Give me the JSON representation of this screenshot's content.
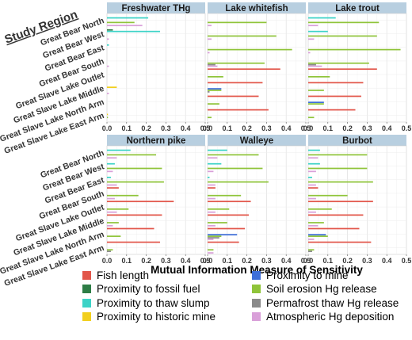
{
  "chart_data": {
    "type": "bar",
    "orientation": "horizontal",
    "y_title": "Study Region",
    "xlabel": "Mutual Information Measure of Sensitivity",
    "xlim": [
      0,
      0.5
    ],
    "xticks": [
      "0.0",
      "0.1",
      "0.2",
      "0.3",
      "0.4",
      "0.5"
    ],
    "grid": true,
    "legend_position": "bottom",
    "categories": [
      "Great Bear North",
      "Great Bear West",
      "Great Bear East",
      "Great Bear South",
      "Great Slave Lake Outlet",
      "Great Slave Lake Middle",
      "Great Slave Lake North Arm",
      "Great Slave Lake East Arm"
    ],
    "variables": [
      {
        "name": "Fish length",
        "color": "#e2564a"
      },
      {
        "name": "Proximity to fossil fuel",
        "color": "#2e7d46"
      },
      {
        "name": "Proximity to thaw slump",
        "color": "#3dd3c7"
      },
      {
        "name": "Proximity to historic mine",
        "color": "#f2cf1d"
      },
      {
        "name": "Proximity to mine",
        "color": "#3f6fd9"
      },
      {
        "name": "Soil erosion Hg release",
        "color": "#8fc43a"
      },
      {
        "name": "Permafrost thaw Hg release",
        "color": "#8a8a8a"
      },
      {
        "name": "Atmospheric Hg deposition",
        "color": "#d9a0d9"
      }
    ],
    "panels": [
      {
        "title": "Freshwater THg",
        "data": [
          [
            0,
            0,
            0.21,
            0,
            0,
            0.14,
            0,
            0.18
          ],
          [
            0,
            0.03,
            0.27,
            0,
            0,
            0,
            0,
            0.01
          ],
          [
            0,
            0,
            0.01,
            0,
            0,
            0,
            0,
            0
          ],
          [
            0,
            0,
            0,
            0,
            0,
            0,
            0,
            0.01
          ],
          [
            0,
            0,
            0,
            0,
            0,
            0,
            0,
            0
          ],
          [
            0,
            0,
            0,
            0.05,
            0,
            0,
            0,
            0.01
          ],
          [
            0,
            0,
            0,
            0,
            0,
            0,
            0,
            0
          ],
          [
            0,
            0,
            0,
            0.005,
            0,
            0.005,
            0,
            0
          ]
        ]
      },
      {
        "title": "Lake whitefish",
        "data": [
          [
            0,
            0,
            0,
            0,
            0,
            0.3,
            0,
            0.02
          ],
          [
            0,
            0,
            0,
            0,
            0,
            0.35,
            0,
            0.02
          ],
          [
            0,
            0,
            0,
            0,
            0,
            0.43,
            0,
            0.01
          ],
          [
            0,
            0,
            0,
            0,
            0,
            0.29,
            0.04,
            0.05
          ],
          [
            0.37,
            0,
            0,
            0,
            0,
            0.08,
            0,
            0
          ],
          [
            0.28,
            0,
            0,
            0,
            0.07,
            0.07,
            0.01,
            0
          ],
          [
            0.26,
            0,
            0,
            0,
            0,
            0.06,
            0,
            0
          ],
          [
            0.31,
            0,
            0,
            0,
            0,
            0.02,
            0,
            0
          ]
        ]
      },
      {
        "title": "Lake trout",
        "data": [
          [
            0,
            0,
            0.14,
            0,
            0,
            0.36,
            0,
            0.05
          ],
          [
            0,
            0,
            0.1,
            0,
            0,
            0.35,
            0,
            0.03
          ],
          [
            0,
            0,
            0,
            0,
            0,
            0.47,
            0,
            0.01
          ],
          [
            0,
            0,
            0,
            0,
            0,
            0.31,
            0.04,
            0.07
          ],
          [
            0.35,
            0,
            0,
            0,
            0,
            0.11,
            0,
            0
          ],
          [
            0.28,
            0,
            0,
            0,
            0,
            0.08,
            0,
            0
          ],
          [
            0.27,
            0,
            0,
            0,
            0.08,
            0.08,
            0,
            0
          ],
          [
            0.24,
            0,
            0,
            0,
            0,
            0.03,
            0,
            0
          ]
        ]
      },
      {
        "title": "Northern pike",
        "data": [
          [
            0,
            0,
            0.12,
            0,
            0,
            0.25,
            0,
            0.05
          ],
          [
            0,
            0,
            0.04,
            0,
            0,
            0.28,
            0,
            0.03
          ],
          [
            0,
            0,
            0.02,
            0,
            0,
            0.29,
            0,
            0.05
          ],
          [
            0.06,
            0,
            0,
            0,
            0,
            0.16,
            0,
            0.04
          ],
          [
            0.34,
            0,
            0,
            0,
            0,
            0.11,
            0,
            0.05
          ],
          [
            0.28,
            0,
            0,
            0,
            0,
            0.06,
            0,
            0.03
          ],
          [
            0.24,
            0,
            0,
            0,
            0,
            0.07,
            0,
            0
          ],
          [
            0.27,
            0,
            0,
            0,
            0,
            0.03,
            0.02,
            0
          ]
        ]
      },
      {
        "title": "Walleye",
        "data": [
          [
            0,
            0,
            0.1,
            0,
            0,
            0.26,
            0,
            0.05
          ],
          [
            0,
            0,
            0.07,
            0,
            0,
            0.28,
            0,
            0.03
          ],
          [
            0,
            0,
            0.01,
            0,
            0,
            0.31,
            0,
            0.04
          ],
          [
            0.04,
            0,
            0,
            0,
            0,
            0.17,
            0,
            0.04
          ],
          [
            0.22,
            0,
            0,
            0,
            0,
            0.11,
            0,
            0.04
          ],
          [
            0.21,
            0,
            0,
            0,
            0,
            0.1,
            0,
            0.04
          ],
          [
            0.19,
            0,
            0,
            0,
            0.15,
            0.07,
            0.06,
            0.03
          ],
          [
            0.16,
            0,
            0,
            0,
            0,
            0.03,
            0,
            0.03
          ]
        ]
      },
      {
        "title": "Burbot",
        "data": [
          [
            0,
            0,
            0.06,
            0,
            0,
            0.3,
            0,
            0.05
          ],
          [
            0,
            0,
            0.06,
            0,
            0,
            0.3,
            0,
            0.04
          ],
          [
            0,
            0,
            0.02,
            0,
            0,
            0.33,
            0,
            0.04
          ],
          [
            0.05,
            0,
            0,
            0,
            0,
            0.2,
            0,
            0.04
          ],
          [
            0.33,
            0,
            0,
            0,
            0,
            0.12,
            0,
            0.04
          ],
          [
            0.28,
            0,
            0,
            0,
            0,
            0.08,
            0,
            0.05
          ],
          [
            0.26,
            0,
            0,
            0,
            0.09,
            0.1,
            0,
            0.03
          ],
          [
            0.32,
            0,
            0,
            0,
            0,
            0.03,
            0.02,
            0
          ]
        ]
      }
    ]
  }
}
